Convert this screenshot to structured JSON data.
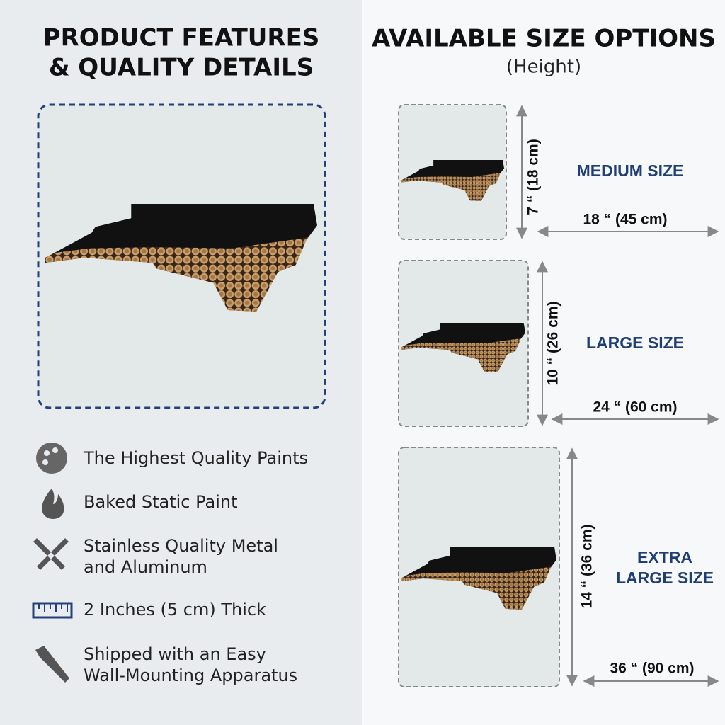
{
  "left": {
    "title": [
      "PRODUCT FEATURES",
      "& QUALITY DETAILS"
    ],
    "features": [
      [
        "The Highest Quality Paints"
      ],
      [
        "Baked Static Paint"
      ],
      [
        "Stainless Quality Metal",
        "and Aluminum"
      ],
      [
        "2 Inches (5 cm) Thick"
      ],
      [
        "Shipped with an Easy",
        "Wall-Mounting Apparatus"
      ]
    ]
  },
  "right": {
    "title": "AVAILABLE SIZE OPTIONS",
    "subtitle": "(Height)",
    "sizes": [
      {
        "name": [
          "MEDIUM SIZE"
        ],
        "height": "7 “ (18 cm)",
        "width": "18 “ (45 cm)"
      },
      {
        "name": [
          "LARGE SIZE"
        ],
        "height": "10 “ (26 cm)",
        "width": "24 “ (60 cm)"
      },
      {
        "name": [
          "EXTRA",
          "LARGE SIZE"
        ],
        "height": "14 “ (36 cm)",
        "width": "36 “ (90 cm)"
      }
    ]
  }
}
